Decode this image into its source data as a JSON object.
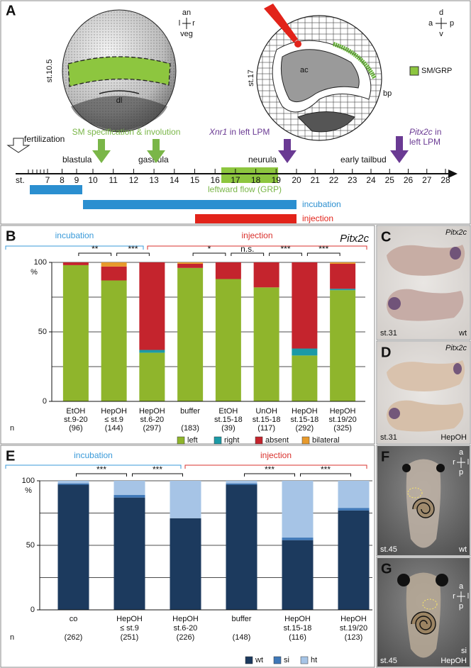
{
  "panel_labels": [
    "A",
    "B",
    "C",
    "D",
    "E",
    "F",
    "G"
  ],
  "timeline": {
    "stage_label": "st.",
    "stages": [
      7,
      8,
      9,
      10,
      11,
      12,
      13,
      14,
      15,
      16,
      17,
      18,
      19,
      20,
      21,
      22,
      23,
      24,
      25,
      26,
      27,
      28
    ],
    "fertilization": "fertilization",
    "phases": [
      "blastula",
      "gastrula",
      "neurula",
      "early tailbud"
    ],
    "sm": "SM specification & involution",
    "xnr1": {
      "gene": "Xnr1",
      "text": "in left LPM"
    },
    "pitx2c": {
      "gene": "Pitx2c",
      "text": "in",
      "text2": "left LPM"
    },
    "flow": "leftward flow (GRP)",
    "incubation": "incubation",
    "injection": "injection"
  },
  "embryos": {
    "left": {
      "stage": "st.10.5",
      "dl": "dl",
      "axes": [
        "an",
        "l",
        "r",
        "veg"
      ]
    },
    "right": {
      "stage": "st.17",
      "ac": "ac",
      "bp": "bp",
      "axes": [
        "d",
        "a",
        "p",
        "v"
      ],
      "legend": "SM/GRP"
    }
  },
  "chart_data": [
    {
      "type": "bar",
      "stacked": true,
      "title": "Pitx2c",
      "y_label": "%",
      "categories": [
        [
          "EtOH",
          "st.9-20"
        ],
        [
          "HepOH",
          "≤ st.9"
        ],
        [
          "HepOH",
          "st.6-20"
        ],
        [
          "buffer"
        ],
        [
          "EtOH",
          "st.15-18"
        ],
        [
          "UnOH",
          "st.15-18"
        ],
        [
          "HepOH",
          "st.15-18"
        ],
        [
          "HepOH",
          "st.19/20"
        ]
      ],
      "n_label": "n",
      "n": [
        "(96)",
        "(144)",
        "(297)",
        "(183)",
        "(39)",
        "(117)",
        "(292)",
        "(325)"
      ],
      "series": [
        {
          "name": "left",
          "color": "#8fb52c",
          "values": [
            98,
            87,
            35,
            96,
            88,
            82,
            33,
            80
          ]
        },
        {
          "name": "right",
          "color": "#1b9aa6",
          "values": [
            0,
            0,
            2,
            0,
            0,
            0,
            5,
            1
          ]
        },
        {
          "name": "absent",
          "color": "#c4242d",
          "values": [
            2,
            10,
            63,
            3,
            12,
            18,
            62,
            18
          ]
        },
        {
          "name": "bilateral",
          "color": "#e79a2c",
          "values": [
            0,
            3,
            0,
            1,
            0,
            0,
            0,
            1
          ]
        }
      ],
      "groups": [
        {
          "name": "incubation",
          "color": "#3a9ad9",
          "size": 3
        },
        {
          "name": "injection",
          "color": "#d9302c",
          "size": 5
        }
      ],
      "significance": [
        "**",
        "***",
        null,
        "*",
        "n.s.",
        "***",
        "***"
      ],
      "ylim": [
        0,
        100
      ],
      "yticks": [
        0,
        50,
        100
      ],
      "gridlines": [
        25,
        50,
        75,
        100
      ],
      "legend": "bottom"
    },
    {
      "type": "bar",
      "stacked": true,
      "y_label": "%",
      "categories": [
        [
          "co"
        ],
        [
          "HepOH",
          "≤ st.9"
        ],
        [
          "HepOH",
          "st.6-20"
        ],
        [
          "buffer"
        ],
        [
          "HepOH",
          "st.15-18"
        ],
        [
          "HepOH",
          "st.19/20"
        ]
      ],
      "n_label": "n",
      "n": [
        "(262)",
        "(251)",
        "(226)",
        "(148)",
        "(116)",
        "(123)"
      ],
      "series": [
        {
          "name": "wt",
          "color": "#1c3a5e",
          "values": [
            97,
            87,
            71,
            97,
            54,
            77
          ]
        },
        {
          "name": "si",
          "color": "#3f78b8",
          "values": [
            1,
            2,
            0,
            1,
            2,
            2
          ]
        },
        {
          "name": "ht",
          "color": "#a6c4e6",
          "values": [
            2,
            11,
            29,
            2,
            44,
            21
          ]
        }
      ],
      "groups": [
        {
          "name": "incubation",
          "color": "#3a9ad9",
          "size": 3
        },
        {
          "name": "injection",
          "color": "#d9302c",
          "size": 3
        }
      ],
      "significance": [
        "***",
        "***",
        null,
        "***",
        "***"
      ],
      "ylim": [
        0,
        100
      ],
      "yticks": [
        0,
        50,
        100
      ],
      "gridlines": [
        25,
        50,
        75,
        100
      ],
      "legend": "bottom"
    }
  ],
  "photos": {
    "C": {
      "gene": "Pitx2c",
      "stage": "st.31",
      "condition": "wt"
    },
    "D": {
      "gene": "Pitx2c",
      "stage": "st.31",
      "condition": "HepOH"
    },
    "F": {
      "axes": [
        "a",
        "r",
        "l",
        "p"
      ],
      "stage": "st.45",
      "condition": "wt"
    },
    "G": {
      "axes": [
        "a",
        "r",
        "l",
        "p"
      ],
      "stage": "st.45",
      "phenotype": "si",
      "condition": "HepOH"
    }
  }
}
